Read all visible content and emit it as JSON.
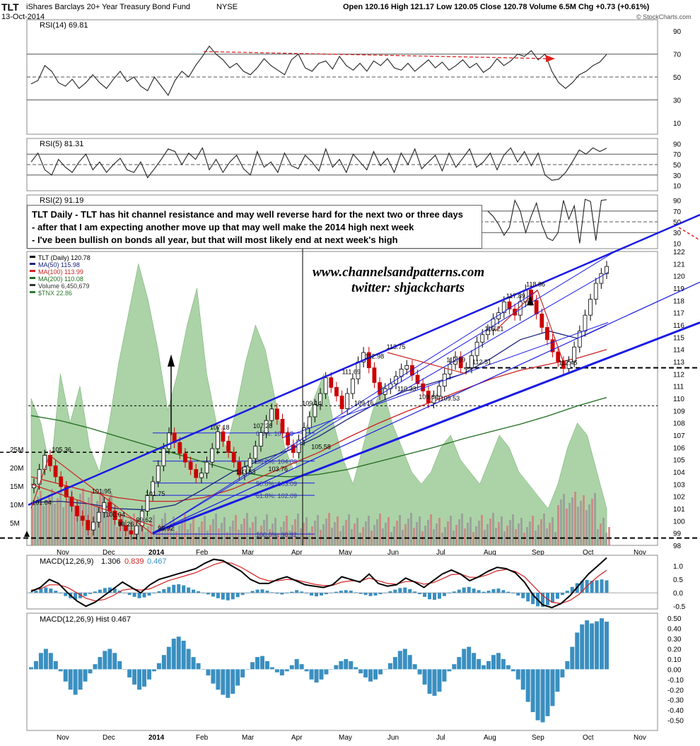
{
  "header": {
    "symbol": "TLT",
    "name": "iShares Barclays 20+ Year Treasury Bond Fund",
    "exchange": "NYSE",
    "date": "13-Oct-2014",
    "quote": "Open 120.16  High 121.17  Low 120.05  Close 120.78  Volume 6.5M  Chg +0.73 (+0.61%)",
    "source": "© StockCharts.com"
  },
  "annotation": {
    "lines": [
      "TLT Daily - TLT has hit channel resistance and may well reverse hard for the next two or three days",
      "- after that I am expecting another move up that may well make the 2014 high next week",
      "- I've been bullish on bonds all year, but that will most likely end at next week's high"
    ]
  },
  "watermark": {
    "site": "www.channelsandpatterns.com",
    "twitter": "twitter: shjackcharts"
  },
  "colors": {
    "price_up": "#000000",
    "price_down": "#cc0000",
    "ma50": "#1a237e",
    "ma100": "#cc2222",
    "ma200": "#1e6b1e",
    "tnx_area": "#8fc48a",
    "trendline": "#1a1ae6",
    "macd_hist": "#3a8fc0",
    "rsi_overbought": "#555555",
    "rsi_oversold": "#8a4a4a"
  },
  "chart_data": [
    {
      "panel": "rsi14",
      "type": "line",
      "legend": "RSI(14) 69.81",
      "ylim": [
        0,
        100
      ],
      "ticks": [
        10,
        30,
        50,
        70,
        90
      ],
      "ref_lines": [
        30,
        50,
        70
      ],
      "values": [
        44,
        47,
        60,
        55,
        45,
        42,
        48,
        40,
        45,
        52,
        45,
        40,
        48,
        55,
        46,
        50,
        42,
        38,
        50,
        42,
        34,
        47,
        55,
        50,
        60,
        68,
        77,
        70,
        65,
        58,
        62,
        55,
        52,
        58,
        66,
        60,
        56,
        52,
        65,
        70,
        58,
        55,
        62,
        64,
        57,
        68,
        60,
        56,
        62,
        55,
        64,
        60,
        66,
        58,
        56,
        62,
        55,
        60,
        65,
        58,
        63,
        56,
        60,
        65,
        58,
        62,
        54,
        58,
        66,
        60,
        64,
        70,
        68,
        73,
        65,
        70,
        55,
        45,
        40,
        45,
        52,
        55,
        60,
        63,
        69.81
      ]
    },
    {
      "panel": "rsi5",
      "type": "line",
      "legend": "RSI(5) 81.31",
      "ylim": [
        0,
        100
      ],
      "ticks": [
        10,
        30,
        50,
        70,
        90
      ],
      "ref_lines": [
        30,
        50,
        70
      ],
      "values": [
        55,
        72,
        40,
        30,
        60,
        45,
        35,
        55,
        70,
        40,
        55,
        35,
        50,
        62,
        40,
        35,
        55,
        25,
        42,
        60,
        80,
        75,
        50,
        72,
        60,
        82,
        40,
        60,
        35,
        55,
        68,
        42,
        30,
        75,
        45,
        55,
        35,
        72,
        48,
        42,
        68,
        55,
        38,
        80,
        45,
        60,
        35,
        70,
        55,
        40,
        75,
        48,
        62,
        35,
        72,
        50,
        80,
        42,
        55,
        68,
        38,
        72,
        45,
        62,
        80,
        45,
        55,
        72,
        40,
        68,
        82,
        55,
        75,
        48,
        72,
        30,
        20,
        22,
        35,
        55,
        78,
        70,
        82,
        75,
        81.31
      ]
    },
    {
      "panel": "rsi2",
      "type": "line",
      "legend": "RSI(2) 91.19",
      "ylim": [
        0,
        100
      ],
      "ticks": [
        10,
        30,
        50,
        70,
        90
      ],
      "ref_lines": [
        30,
        50,
        70
      ],
      "values": [
        70,
        60,
        45,
        25,
        40,
        90,
        70,
        30,
        60,
        85,
        45,
        20,
        15,
        30,
        90,
        55,
        80,
        10,
        92,
        88,
        15,
        90,
        91.19
      ]
    },
    {
      "panel": "price",
      "type": "candlestick",
      "legend": "TLT (Daily) 120.78",
      "ylim": [
        98,
        122
      ],
      "ticks": [
        98,
        99,
        100,
        101,
        102,
        103,
        104,
        105,
        106,
        107,
        108,
        109,
        110,
        111,
        112,
        113,
        114,
        115,
        116,
        117,
        118,
        119,
        120,
        121,
        122
      ],
      "xlabels": [
        "Nov",
        "Dec",
        "2014",
        "Feb",
        "Mar",
        "Apr",
        "May",
        "Jun",
        "Jul",
        "Aug",
        "Sep",
        "Oct",
        "Nov"
      ],
      "closes": [
        103.0,
        104.2,
        105.36,
        104.5,
        103.6,
        102.8,
        101.95,
        101.2,
        100.4,
        100.04,
        99.26,
        99.9,
        100.7,
        101.5,
        100.8,
        100.1,
        99.62,
        99.2,
        98.92,
        99.6,
        100.8,
        102.1,
        103.2,
        104.5,
        105.9,
        107.18,
        106.4,
        105.5,
        104.8,
        104.2,
        103.53,
        103.9,
        104.8,
        105.9,
        107.28,
        106.5,
        105.6,
        104.8,
        103.76,
        104.4,
        105.1,
        106.1,
        107.2,
        108.2,
        109.14,
        108.3,
        107.2,
        106.2,
        105.58,
        106.6,
        107.6,
        108.5,
        109.5,
        110.4,
        111.69,
        110.9,
        110.2,
        109.16,
        110.4,
        111.6,
        112.98,
        113.75,
        112.5,
        111.3,
        110.33,
        110.8,
        111.2,
        111.8,
        112.4,
        112.69,
        111.9,
        111.2,
        110.6,
        109.64,
        110.2,
        111.0,
        112.0,
        112.8,
        113.4,
        112.5,
        112.51,
        113.5,
        114.6,
        115.21,
        115.6,
        116.5,
        117.0,
        117.89,
        117.3,
        116.8,
        117.9,
        118.86,
        118.0,
        116.9,
        115.8,
        114.8,
        113.8,
        113.0,
        112.45,
        113.0,
        114.2,
        115.5,
        116.8,
        118.1,
        119.4,
        120.2,
        120.78
      ],
      "labels": [
        {
          "text": "105.36",
          "date": "2013-10-23",
          "value": 105.36
        },
        {
          "text": "101.04",
          "date": "2013-10-10",
          "value": 101.04
        },
        {
          "text": "101.95",
          "date": "2013-11-18",
          "value": 101.95
        },
        {
          "text": "100.04",
          "date": "2013-11-27",
          "value": 100.04
        },
        {
          "text": "99.26",
          "date": "2013-12-05",
          "value": 99.26
        },
        {
          "text": "99.62",
          "date": "2013-12-17",
          "value": 99.62
        },
        {
          "text": "101.75",
          "date": "2013-12-23",
          "value": 101.75
        },
        {
          "text": "98.92",
          "date": "2013-12-31",
          "value": 98.92
        },
        {
          "text": "107.18",
          "date": "2014-02-03",
          "value": 107.18
        },
        {
          "text": "103.53",
          "date": "2014-02-20",
          "value": 103.53
        },
        {
          "text": "107.28",
          "date": "2014-03-03",
          "value": 107.28
        },
        {
          "text": "103.76",
          "date": "2014-03-13",
          "value": 103.76
        },
        {
          "text": "109.14",
          "date": "2014-04-04",
          "value": 109.14
        },
        {
          "text": "105.58",
          "date": "2014-04-10",
          "value": 105.58
        },
        {
          "text": "111.69",
          "date": "2014-04-30",
          "value": 111.69
        },
        {
          "text": "109.16",
          "date": "2014-05-08",
          "value": 109.16
        },
        {
          "text": "112.98",
          "date": "2014-05-15",
          "value": 112.98
        },
        {
          "text": "113.75",
          "date": "2014-05-29",
          "value": 113.75
        },
        {
          "text": "110.33",
          "date": "2014-06-05",
          "value": 110.33
        },
        {
          "text": "109.64",
          "date": "2014-06-19",
          "value": 109.64
        },
        {
          "text": "112.69",
          "date": "2014-07-07",
          "value": 112.69
        },
        {
          "text": "109.53",
          "date": "2014-07-03",
          "value": 109.53
        },
        {
          "text": "112.51",
          "date": "2014-07-24",
          "value": 112.51
        },
        {
          "text": "115.21",
          "date": "2014-08-01",
          "value": 115.21
        },
        {
          "text": "117.89",
          "date": "2014-08-15",
          "value": 117.89
        },
        {
          "text": "118.86",
          "date": "2014-08-28",
          "value": 118.86
        },
        {
          "text": "112.45",
          "date": "2014-09-18",
          "value": 112.45
        }
      ],
      "overlays": {
        "ma50": {
          "legend": "MA(50) 115.98",
          "last": 115.98
        },
        "ma100": {
          "legend": "MA(100) 113.99",
          "last": 113.99
        },
        "ma200": {
          "legend": "MA(200) 110.08",
          "last": 110.08
        },
        "volume": {
          "legend": "Volume 6,450,679",
          "ticks": [
            "5M",
            "10M",
            "15M",
            "20M",
            "25M"
          ]
        },
        "tnx": {
          "legend": "$TNX 22.86"
        }
      },
      "fibonacci": [
        {
          "text": "0.0%: 107.18",
          "value": 107.18
        },
        {
          "text": "38.2%: 104.88",
          "value": 104.88
        },
        {
          "text": "50.0%: 103.09",
          "value": 103.09
        },
        {
          "text": "61.8%: 102.09",
          "value": 102.09
        },
        {
          "text": "100.0%: 98.92",
          "value": 98.92
        }
      ]
    },
    {
      "panel": "macd",
      "type": "line",
      "legend": [
        "MACD(12,26,9)",
        "1.306",
        "0.839",
        "0.467"
      ],
      "ylim": [
        -0.6,
        1.4
      ],
      "ticks": [
        -0.5,
        0.0,
        0.5,
        1.0
      ],
      "macd": [
        0.05,
        0.2,
        0.5,
        0.35,
        0.0,
        -0.3,
        -0.5,
        -0.35,
        -0.1,
        0.15,
        0.4,
        0.2,
        0.0,
        0.3,
        0.5,
        0.6,
        0.7,
        0.8,
        0.9,
        1.1,
        1.25,
        1.2,
        1.0,
        0.8,
        0.5,
        0.35,
        0.35,
        0.5,
        0.6,
        0.45,
        0.3,
        0.25,
        0.2,
        0.3,
        0.6,
        0.5,
        0.4,
        0.7,
        0.35,
        0.25,
        0.3,
        0.55,
        0.4,
        0.2,
        0.45,
        0.7,
        0.85,
        0.7,
        0.45,
        0.6,
        0.8,
        0.95,
        0.9,
        0.75,
        0.4,
        -0.1,
        -0.45,
        -0.55,
        -0.4,
        -0.1,
        0.3,
        0.7,
        1.0,
        1.306
      ],
      "signal": [
        0.1,
        0.15,
        0.3,
        0.3,
        0.2,
        0.0,
        -0.2,
        -0.3,
        -0.25,
        -0.1,
        0.1,
        0.15,
        0.1,
        0.15,
        0.3,
        0.45,
        0.55,
        0.65,
        0.75,
        0.9,
        1.05,
        1.15,
        1.1,
        0.95,
        0.75,
        0.55,
        0.45,
        0.45,
        0.5,
        0.48,
        0.4,
        0.32,
        0.27,
        0.28,
        0.4,
        0.45,
        0.43,
        0.55,
        0.45,
        0.35,
        0.32,
        0.42,
        0.42,
        0.32,
        0.38,
        0.52,
        0.68,
        0.7,
        0.58,
        0.58,
        0.68,
        0.82,
        0.87,
        0.8,
        0.6,
        0.25,
        -0.1,
        -0.35,
        -0.4,
        -0.28,
        -0.05,
        0.3,
        0.6,
        0.839
      ]
    },
    {
      "panel": "macd_hist",
      "type": "bar",
      "legend": "MACD(12,26,9) Hist 0.467",
      "ylim": [
        -0.6,
        0.55
      ],
      "ticks": [
        -0.5,
        -0.4,
        -0.3,
        -0.2,
        -0.1,
        0.0,
        0.1,
        0.2,
        0.3,
        0.4,
        0.5
      ],
      "tick_labels": [
        "-0.50",
        "-0.40",
        "-0.30",
        "-0.20",
        "-0.10",
        "0.00",
        "0.10",
        "0.20",
        "0.30",
        "0.40",
        "0.50"
      ],
      "values": [
        0.02,
        0.08,
        0.16,
        0.2,
        0.16,
        0.08,
        -0.02,
        -0.12,
        -0.2,
        -0.25,
        -0.2,
        -0.12,
        -0.04,
        0.05,
        0.12,
        0.18,
        0.2,
        0.16,
        0.08,
        0.0,
        -0.08,
        -0.15,
        -0.2,
        -0.17,
        -0.1,
        -0.02,
        0.06,
        0.14,
        0.22,
        0.3,
        0.32,
        0.28,
        0.2,
        0.12,
        0.06,
        0.0,
        -0.06,
        -0.14,
        -0.2,
        -0.25,
        -0.28,
        -0.24,
        -0.16,
        -0.08,
        0.0,
        0.07,
        0.12,
        0.13,
        0.08,
        0.02,
        -0.03,
        -0.06,
        -0.02,
        0.04,
        0.1,
        0.05,
        -0.02,
        -0.1,
        -0.13,
        -0.1,
        -0.05,
        0.0,
        0.04,
        0.08,
        0.1,
        0.08,
        0.02,
        -0.04,
        -0.08,
        -0.12,
        -0.1,
        -0.05,
        0.0,
        0.06,
        0.12,
        0.18,
        0.2,
        0.14,
        0.05,
        -0.05,
        -0.15,
        -0.24,
        -0.26,
        -0.22,
        -0.12,
        -0.02,
        0.05,
        0.12,
        0.2,
        0.22,
        0.16,
        0.1,
        0.04,
        0.08,
        0.14,
        0.16,
        0.1,
        0.04,
        -0.02,
        -0.1,
        -0.2,
        -0.32,
        -0.42,
        -0.5,
        -0.52,
        -0.46,
        -0.36,
        -0.22,
        -0.08,
        0.08,
        0.22,
        0.36,
        0.44,
        0.48,
        0.45,
        0.47,
        0.5,
        0.467
      ]
    }
  ]
}
